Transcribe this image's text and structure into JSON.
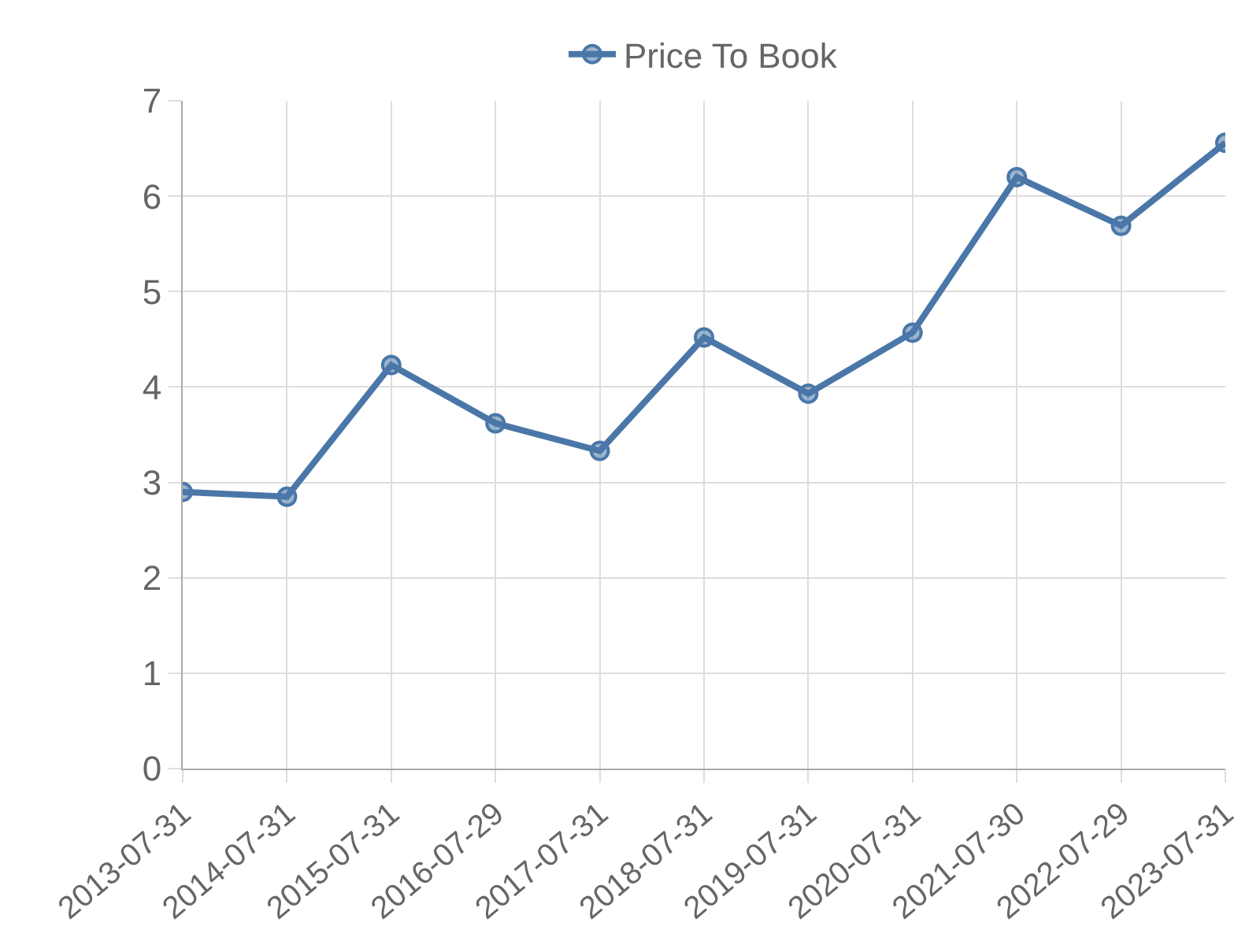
{
  "chart_data": {
    "type": "line",
    "categories": [
      "2013-07-31",
      "2014-07-31",
      "2015-07-31",
      "2016-07-29",
      "2017-07-31",
      "2018-07-31",
      "2019-07-31",
      "2020-07-31",
      "2021-07-30",
      "2022-07-29",
      "2023-07-31"
    ],
    "series": [
      {
        "name": "Price To Book",
        "color": "#4a77a8",
        "values": [
          2.9,
          2.85,
          4.23,
          3.62,
          3.33,
          4.52,
          3.93,
          4.57,
          6.2,
          5.69,
          6.56
        ]
      }
    ],
    "ylim": [
      0,
      7
    ],
    "yticks": [
      0,
      1,
      2,
      3,
      4,
      5,
      6,
      7
    ],
    "grid": true,
    "legend": "top",
    "marker": "circle",
    "line_style": "solid"
  }
}
